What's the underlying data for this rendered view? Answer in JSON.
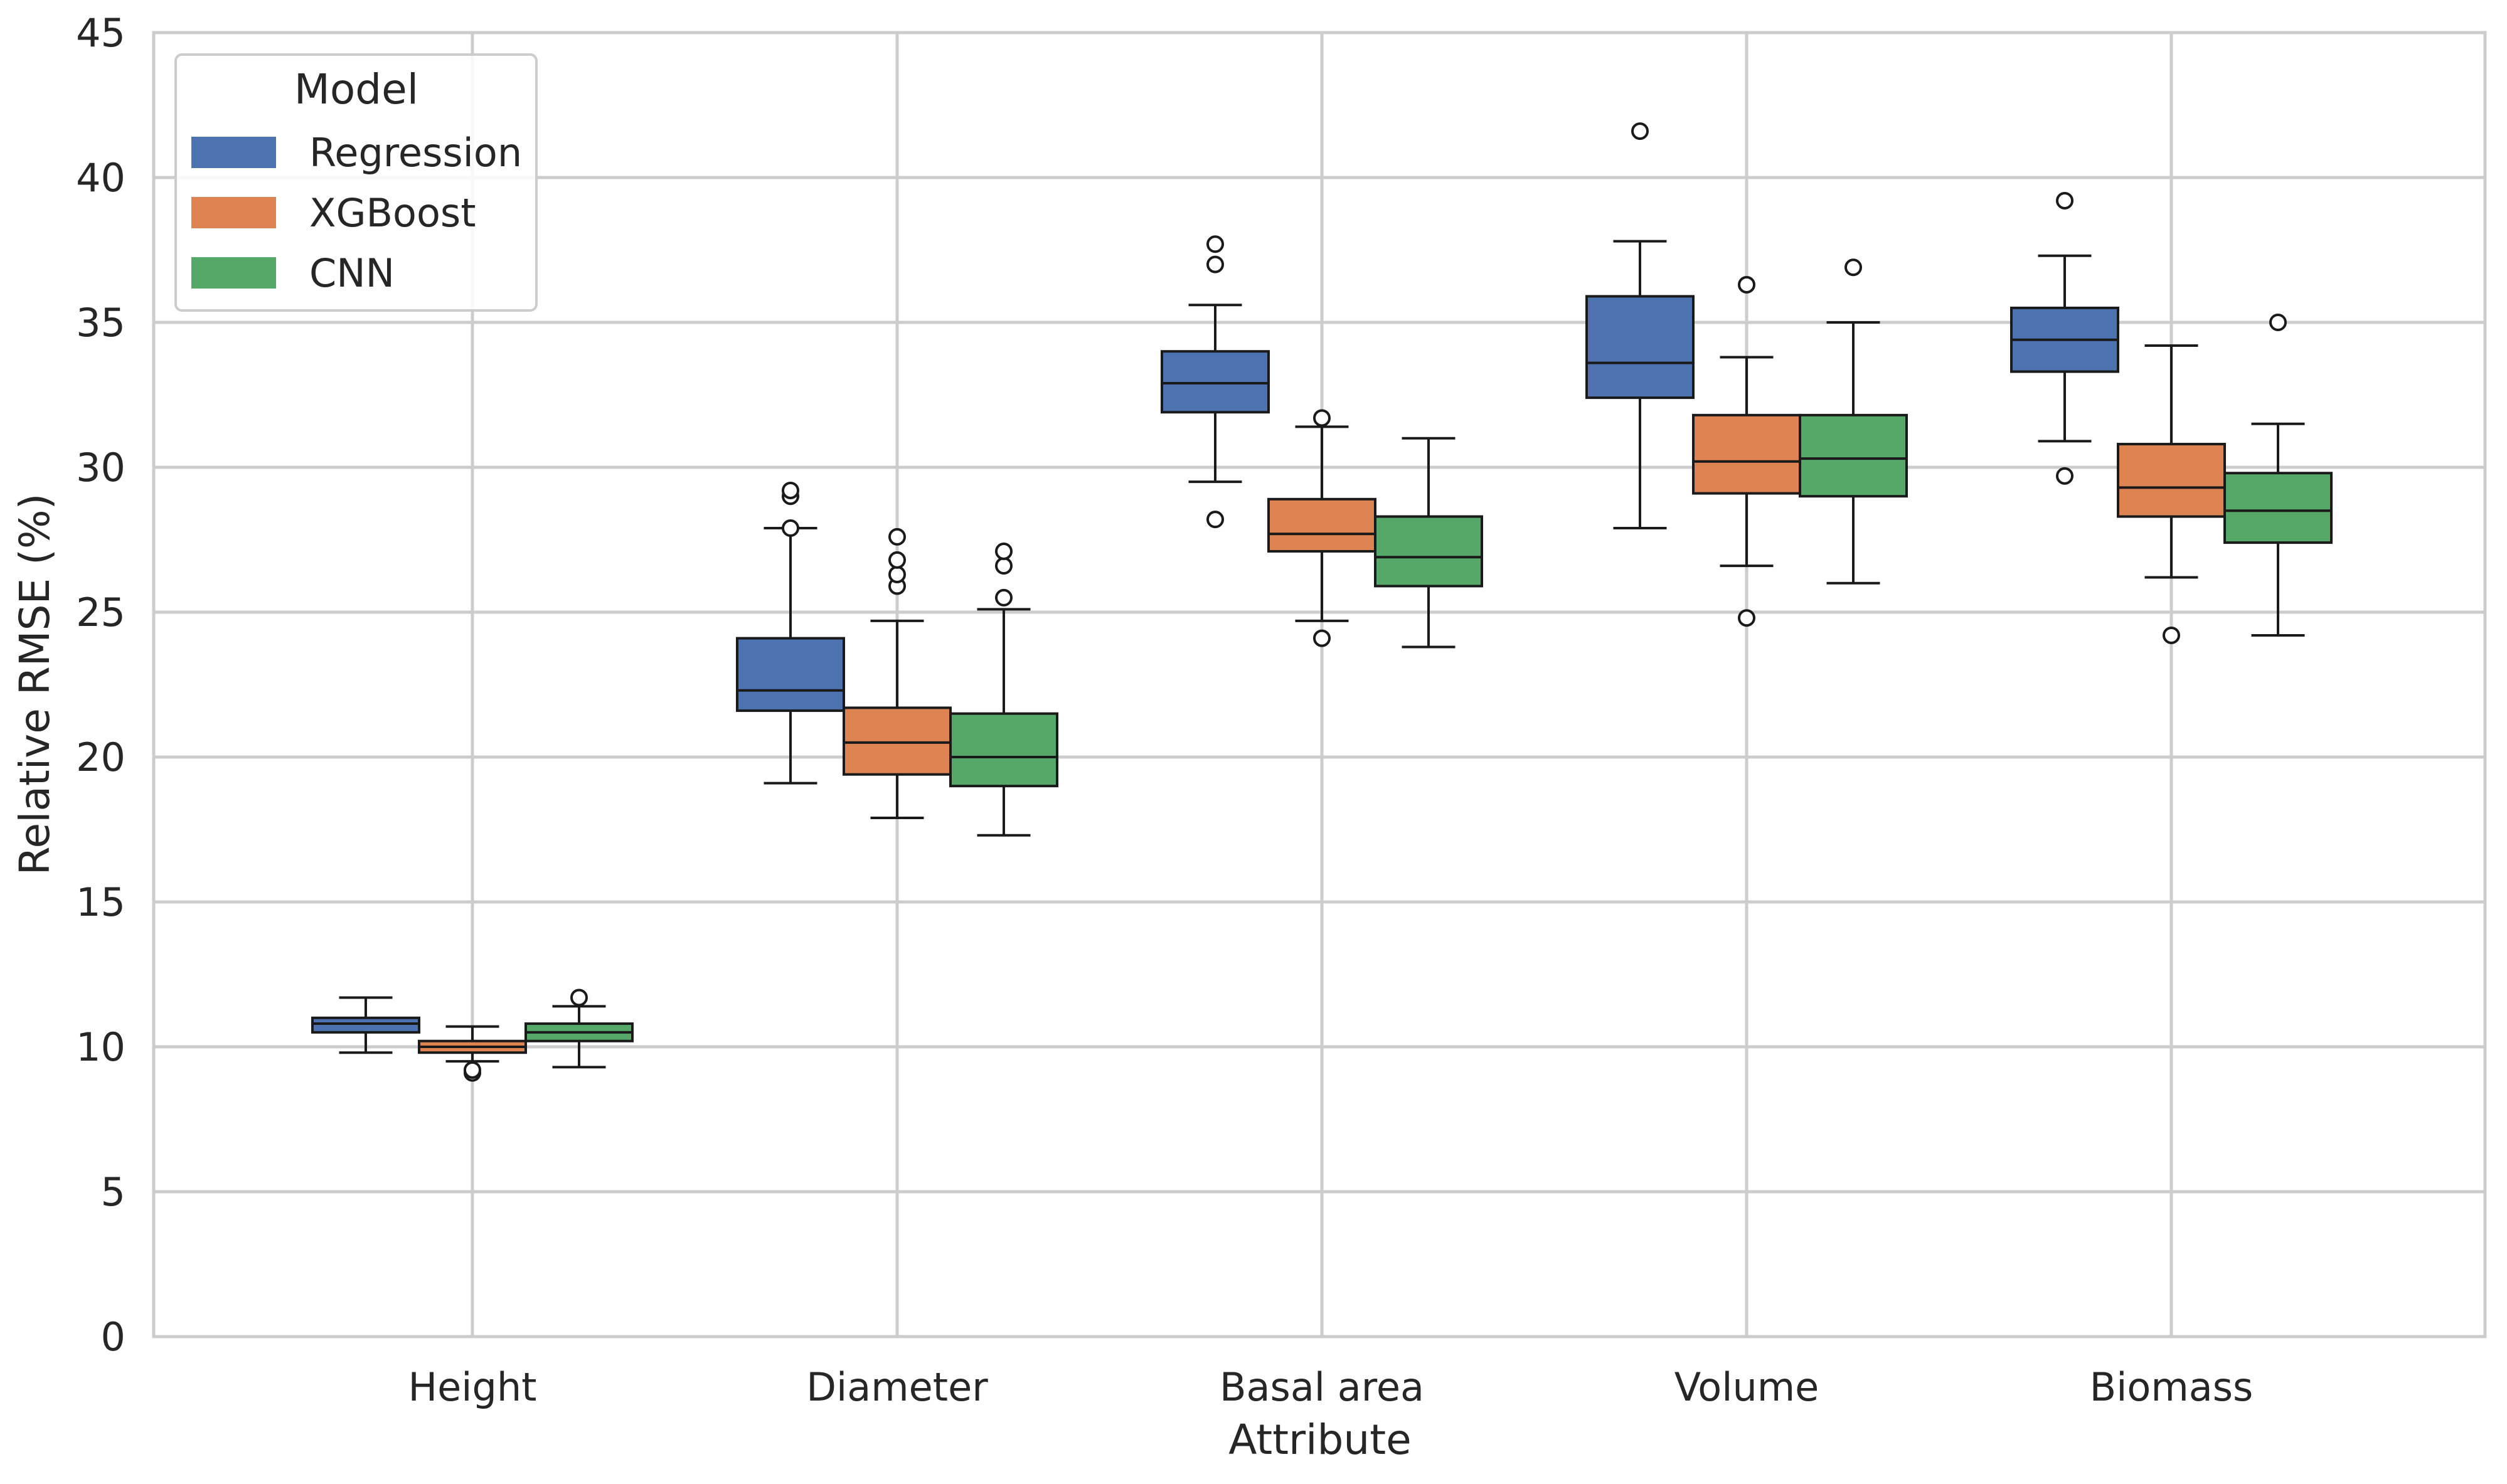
{
  "chart_data": {
    "type": "box",
    "xlabel": "Attribute",
    "ylabel": "Relative RMSE (%)",
    "ylim": [
      0,
      45
    ],
    "yticks": [
      0,
      5,
      10,
      15,
      20,
      25,
      30,
      35,
      40,
      45
    ],
    "grid": true,
    "categories": [
      "Height",
      "Diameter",
      "Basal area",
      "Volume",
      "Biomass"
    ],
    "legend": {
      "title": "Model",
      "position": "top-left"
    },
    "series": [
      {
        "name": "Regression",
        "color": "#4c72b0",
        "boxes": [
          {
            "whisker_low": 9.8,
            "q1": 10.5,
            "median": 10.8,
            "q3": 11.0,
            "whisker_high": 11.7,
            "outliers": []
          },
          {
            "whisker_low": 19.1,
            "q1": 21.6,
            "median": 22.3,
            "q3": 24.1,
            "whisker_high": 27.9,
            "outliers": [
              27.9,
              29.0,
              29.2
            ]
          },
          {
            "whisker_low": 29.5,
            "q1": 31.9,
            "median": 32.9,
            "q3": 34.0,
            "whisker_high": 35.6,
            "outliers": [
              28.2,
              37.0,
              37.7
            ]
          },
          {
            "whisker_low": 27.9,
            "q1": 32.4,
            "median": 33.6,
            "q3": 35.9,
            "whisker_high": 37.8,
            "outliers": [
              41.6
            ]
          },
          {
            "whisker_low": 30.9,
            "q1": 33.3,
            "median": 34.4,
            "q3": 35.5,
            "whisker_high": 37.3,
            "outliers": [
              29.7,
              39.2
            ]
          }
        ]
      },
      {
        "name": "XGBoost",
        "color": "#dd8452",
        "boxes": [
          {
            "whisker_low": 9.5,
            "q1": 9.8,
            "median": 10.0,
            "q3": 10.2,
            "whisker_high": 10.7,
            "outliers": [
              9.1,
              9.2
            ]
          },
          {
            "whisker_low": 17.9,
            "q1": 19.4,
            "median": 20.5,
            "q3": 21.7,
            "whisker_high": 24.7,
            "outliers": [
              25.9,
              26.3,
              26.8,
              27.6
            ]
          },
          {
            "whisker_low": 24.7,
            "q1": 27.1,
            "median": 27.7,
            "q3": 28.9,
            "whisker_high": 31.4,
            "outliers": [
              24.1,
              31.7
            ]
          },
          {
            "whisker_low": 26.6,
            "q1": 29.1,
            "median": 30.2,
            "q3": 31.8,
            "whisker_high": 33.8,
            "outliers": [
              24.8,
              36.3
            ]
          },
          {
            "whisker_low": 26.2,
            "q1": 28.3,
            "median": 29.3,
            "q3": 30.8,
            "whisker_high": 34.2,
            "outliers": [
              24.2
            ]
          }
        ]
      },
      {
        "name": "CNN",
        "color": "#55a868",
        "boxes": [
          {
            "whisker_low": 9.3,
            "q1": 10.2,
            "median": 10.5,
            "q3": 10.8,
            "whisker_high": 11.4,
            "outliers": [
              11.7
            ]
          },
          {
            "whisker_low": 17.3,
            "q1": 19.0,
            "median": 20.0,
            "q3": 21.5,
            "whisker_high": 25.1,
            "outliers": [
              25.5,
              26.6,
              27.1
            ]
          },
          {
            "whisker_low": 23.8,
            "q1": 25.9,
            "median": 26.9,
            "q3": 28.3,
            "whisker_high": 31.0,
            "outliers": []
          },
          {
            "whisker_low": 26.0,
            "q1": 29.0,
            "median": 30.3,
            "q3": 31.8,
            "whisker_high": 35.0,
            "outliers": [
              36.9
            ]
          },
          {
            "whisker_low": 24.2,
            "q1": 27.4,
            "median": 28.5,
            "q3": 29.8,
            "whisker_high": 31.5,
            "outliers": [
              35.0
            ]
          }
        ]
      }
    ]
  }
}
